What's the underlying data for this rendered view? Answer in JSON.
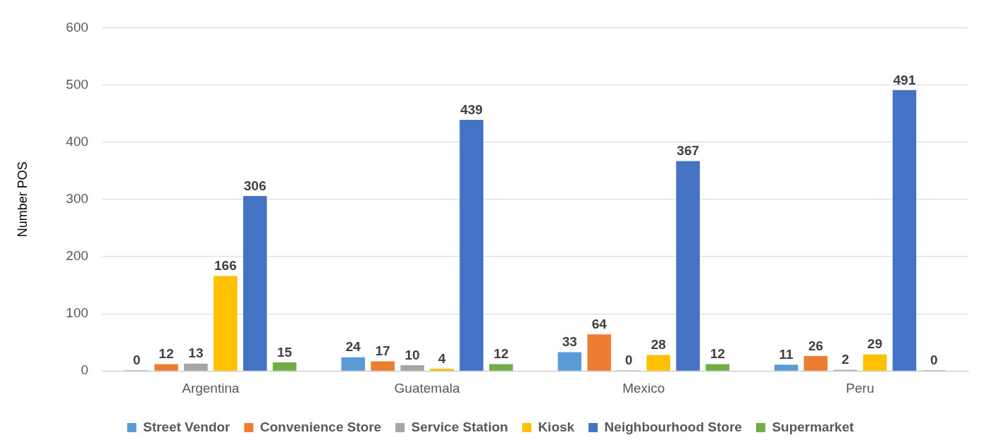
{
  "chart_data": {
    "type": "bar",
    "ylabel": "Number POS",
    "categories": [
      "Argentina",
      "Guatemala",
      "Mexico",
      "Peru"
    ],
    "series": [
      {
        "name": "Street Vendor",
        "color": "#5b9bd5",
        "values": [
          0,
          24,
          33,
          11
        ]
      },
      {
        "name": "Convenience Store",
        "color": "#ed7d31",
        "values": [
          12,
          17,
          64,
          26
        ]
      },
      {
        "name": "Service Station",
        "color": "#a5a5a5",
        "values": [
          13,
          10,
          0,
          2
        ]
      },
      {
        "name": "Kiosk",
        "color": "#ffc000",
        "values": [
          166,
          4,
          28,
          29
        ]
      },
      {
        "name": "Neighbourhood Store",
        "color": "#4472c4",
        "values": [
          306,
          439,
          367,
          491
        ]
      },
      {
        "name": "Supermarket",
        "color": "#70ad47",
        "values": [
          15,
          12,
          12,
          0
        ]
      }
    ],
    "ylim": [
      0,
      600
    ],
    "yticks": [
      0,
      100,
      200,
      300,
      400,
      500,
      600
    ],
    "grid": "y",
    "legend": "bottom",
    "data_labels": true
  }
}
